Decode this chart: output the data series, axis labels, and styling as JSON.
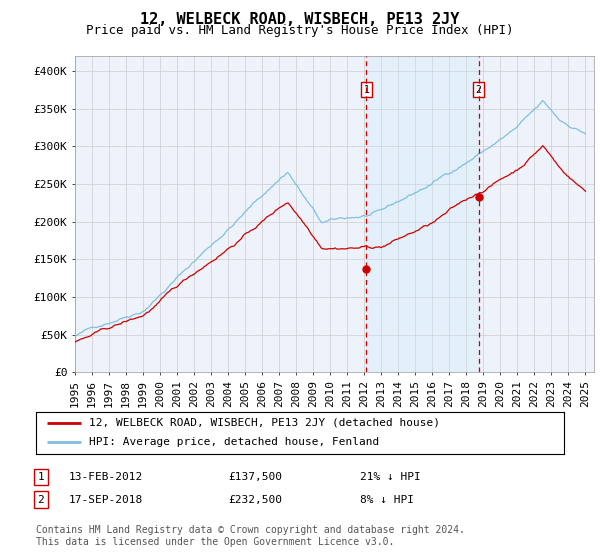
{
  "title": "12, WELBECK ROAD, WISBECH, PE13 2JY",
  "subtitle": "Price paid vs. HM Land Registry's House Price Index (HPI)",
  "ylabel_ticks": [
    "£0",
    "£50K",
    "£100K",
    "£150K",
    "£200K",
    "£250K",
    "£300K",
    "£350K",
    "£400K"
  ],
  "ytick_values": [
    0,
    50000,
    100000,
    150000,
    200000,
    250000,
    300000,
    350000,
    400000
  ],
  "ylim": [
    0,
    420000
  ],
  "xlim_start": 1995.0,
  "xlim_end": 2025.5,
  "sale1_date_x": 2012.12,
  "sale1_price": 137500,
  "sale1_label": "1",
  "sale2_date_x": 2018.72,
  "sale2_price": 232500,
  "sale2_label": "2",
  "hpi_line_color": "#7fbfdf",
  "price_line_color": "#cc0000",
  "vline_color": "#cc0000",
  "grid_color": "#cccccc",
  "background_color": "#ffffff",
  "plot_bg_color": "#eef3fb",
  "shade_color": "#d0e8f8",
  "legend_label_red": "12, WELBECK ROAD, WISBECH, PE13 2JY (detached house)",
  "legend_label_blue": "HPI: Average price, detached house, Fenland",
  "table_row1": [
    "1",
    "13-FEB-2012",
    "£137,500",
    "21% ↓ HPI"
  ],
  "table_row2": [
    "2",
    "17-SEP-2018",
    "£232,500",
    "8% ↓ HPI"
  ],
  "footnote": "Contains HM Land Registry data © Crown copyright and database right 2024.\nThis data is licensed under the Open Government Licence v3.0.",
  "title_fontsize": 11,
  "subtitle_fontsize": 9,
  "tick_fontsize": 8,
  "legend_fontsize": 8,
  "table_fontsize": 8,
  "footnote_fontsize": 7
}
